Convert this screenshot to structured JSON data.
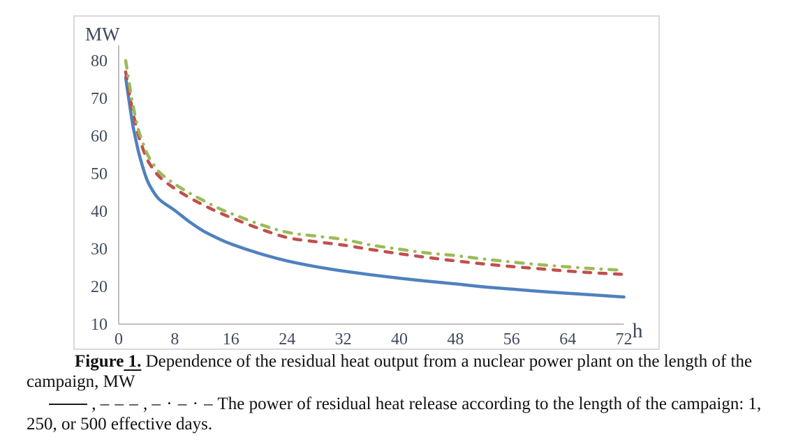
{
  "figure": {
    "axis": {
      "y_title": "MW",
      "x_title": "h"
    },
    "colors": {
      "series_blue": "#4F81BD",
      "series_red": "#C0504D",
      "series_green": "#9BBB59",
      "axis_line": "#BFBFBF",
      "chart_border": "#D9D9D9",
      "tick_text": "#3F4A5C"
    }
  },
  "chart_data": {
    "type": "line",
    "title": "",
    "xlabel": "h",
    "ylabel": "MW",
    "xlim": [
      0,
      72
    ],
    "ylim": [
      10,
      80
    ],
    "x_ticks": [
      0,
      8,
      16,
      24,
      32,
      40,
      48,
      56,
      64,
      72
    ],
    "y_ticks": [
      10,
      20,
      30,
      40,
      50,
      60,
      70,
      80
    ],
    "grid": false,
    "legend_position": "none",
    "series": [
      {
        "name": "campaign length 1 effective day",
        "line_style": "solid",
        "color": "#4F81BD",
        "points": [
          [
            1,
            75.5
          ],
          [
            1.5,
            69
          ],
          [
            2,
            63
          ],
          [
            2.5,
            58.5
          ],
          [
            3,
            54.5
          ],
          [
            4,
            48.5
          ],
          [
            5,
            45
          ],
          [
            6,
            42.8
          ],
          [
            8,
            40.2
          ],
          [
            10,
            37.3
          ],
          [
            12,
            34.8
          ],
          [
            14,
            32.9
          ],
          [
            16,
            31.3
          ],
          [
            20,
            28.8
          ],
          [
            24,
            26.8
          ],
          [
            28,
            25.3
          ],
          [
            32,
            24.1
          ],
          [
            36,
            23.1
          ],
          [
            40,
            22.2
          ],
          [
            44,
            21.4
          ],
          [
            48,
            20.7
          ],
          [
            52,
            19.9
          ],
          [
            56,
            19.3
          ],
          [
            60,
            18.7
          ],
          [
            64,
            18.2
          ],
          [
            68,
            17.7
          ],
          [
            72,
            17.2
          ]
        ]
      },
      {
        "name": "campaign length 250 effective days",
        "line_style": "dashed",
        "color": "#C0504D",
        "points": [
          [
            1,
            77
          ],
          [
            1.5,
            71.5
          ],
          [
            2,
            66.5
          ],
          [
            2.5,
            62.5
          ],
          [
            3,
            59
          ],
          [
            4,
            54
          ],
          [
            5,
            51
          ],
          [
            6,
            48.8
          ],
          [
            8,
            46
          ],
          [
            10,
            43.7
          ],
          [
            12,
            41.7
          ],
          [
            14,
            39.9
          ],
          [
            16,
            38.3
          ],
          [
            20,
            35.4
          ],
          [
            24,
            33
          ],
          [
            28,
            31.9
          ],
          [
            32,
            31
          ],
          [
            36,
            29.8
          ],
          [
            40,
            28.7
          ],
          [
            44,
            27.7
          ],
          [
            48,
            26.8
          ],
          [
            52,
            26
          ],
          [
            56,
            25.3
          ],
          [
            60,
            24.7
          ],
          [
            64,
            24.1
          ],
          [
            68,
            23.6
          ],
          [
            72,
            23.2
          ]
        ]
      },
      {
        "name": "campaign length 500 effective days",
        "line_style": "dash-dot",
        "color": "#9BBB59",
        "points": [
          [
            1,
            80
          ],
          [
            1.5,
            74
          ],
          [
            2,
            68.5
          ],
          [
            2.5,
            64
          ],
          [
            3,
            60.5
          ],
          [
            4,
            55.5
          ],
          [
            5,
            52.3
          ],
          [
            6,
            50
          ],
          [
            8,
            47.2
          ],
          [
            10,
            44.9
          ],
          [
            12,
            42.9
          ],
          [
            14,
            41
          ],
          [
            16,
            39.4
          ],
          [
            20,
            36.6
          ],
          [
            24,
            34.4
          ],
          [
            28,
            33.4
          ],
          [
            32,
            32.5
          ],
          [
            36,
            31
          ],
          [
            40,
            29.9
          ],
          [
            44,
            28.9
          ],
          [
            48,
            28.2
          ],
          [
            52,
            27.3
          ],
          [
            56,
            26.5
          ],
          [
            60,
            25.8
          ],
          [
            64,
            25.2
          ],
          [
            68,
            24.7
          ],
          [
            72,
            24.3
          ]
        ]
      }
    ]
  },
  "caption": {
    "figure_label": "Figure",
    "figure_number": " 1.",
    "line1_rest": " Dependence of the residual heat output from a nuclear power plant on the length of the",
    "line2": "campaign, MW",
    "legend": {
      "comma1": " , ",
      "dashed_symbol": "– – –",
      "comma2": " , ",
      "dashdot_symbol": "– · – · –",
      "text_line1": " The power of residual heat release according to the length of the campaign: 1,",
      "text_line2": "250, or 500 effective days."
    }
  }
}
